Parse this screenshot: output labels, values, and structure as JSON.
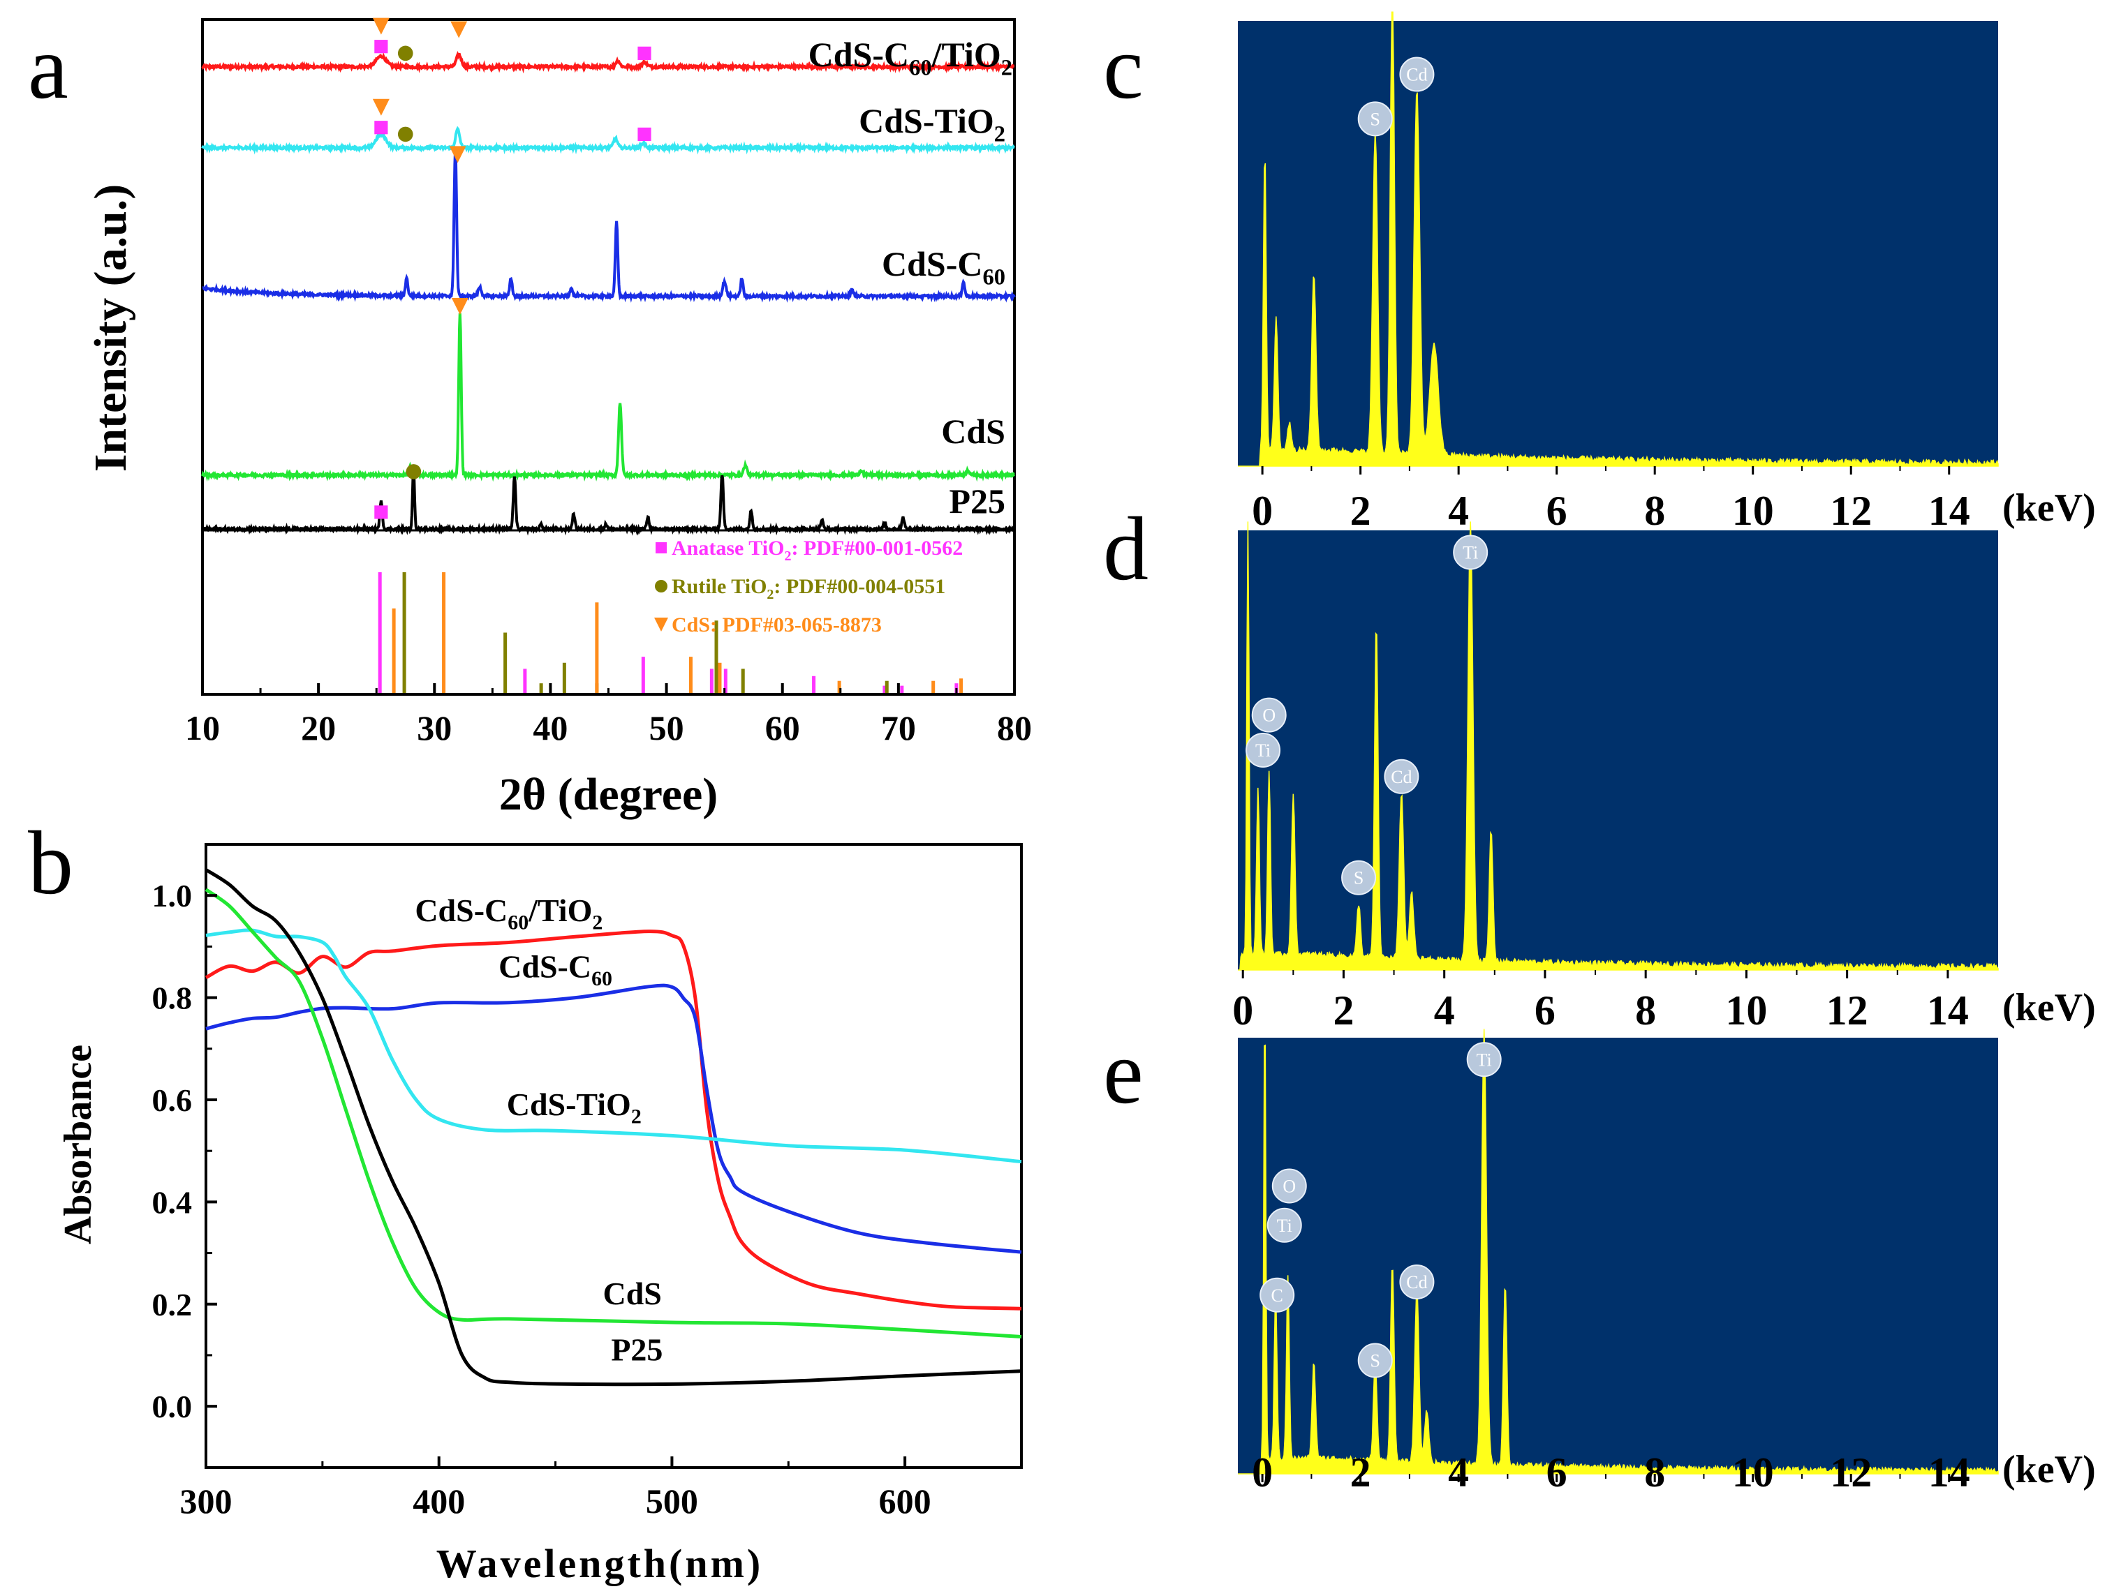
{
  "colors": {
    "red": "#ff1a1a",
    "cyan": "#33e6f0",
    "blue": "#1a2ee6",
    "green": "#22e633",
    "black": "#000000",
    "magenta": "#ff33ff",
    "olive": "#808000",
    "orange": "#ff8c1a",
    "eds_bg": "#00316b",
    "eds_fill": "#ffff1a",
    "bubble": "#b8c8dc"
  },
  "chart_data": [
    {
      "panel": "a",
      "type": "line",
      "title": "",
      "xlabel": "2θ (degree)",
      "ylabel": "Intensity (a.u.)",
      "xlim": [
        10,
        80
      ],
      "xticks": [
        10,
        20,
        30,
        40,
        50,
        60,
        70,
        80
      ],
      "series": [
        {
          "name": "CdS-C60/TiO2",
          "label_main": "CdS-C",
          "label_sub1": "60",
          "label_mid": "/TiO",
          "label_sub2": "2",
          "color": "#ff1a1a",
          "offset": 0.93,
          "scale": 0.045,
          "peaks": [
            [
              25.4,
              0.35,
              0.6
            ],
            [
              32.1,
              0.4,
              0.3
            ],
            [
              45.8,
              0.2,
              0.25
            ],
            [
              48.1,
              0.15,
              0.3
            ]
          ]
        },
        {
          "name": "CdS-TiO2",
          "label_main": "CdS-TiO",
          "label_sub1": "",
          "label_mid": "",
          "label_sub2": "2",
          "color": "#33e6f0",
          "offset": 0.81,
          "scale": 0.045,
          "peaks": [
            [
              25.4,
              0.45,
              0.6
            ],
            [
              32.0,
              0.6,
              0.25
            ],
            [
              45.6,
              0.3,
              0.25
            ],
            [
              48.0,
              0.15,
              0.3
            ]
          ]
        },
        {
          "name": "CdS-C60",
          "label_main": "CdS-C",
          "label_sub1": "60",
          "label_mid": "",
          "label_sub2": "",
          "color": "#1a2ee6",
          "offset": 0.59,
          "scale": 0.22,
          "peaks": [
            [
              27.6,
              0.12,
              0.15
            ],
            [
              31.8,
              1.0,
              0.15
            ],
            [
              33.9,
              0.06,
              0.2
            ],
            [
              36.6,
              0.12,
              0.15
            ],
            [
              41.8,
              0.06,
              0.15
            ],
            [
              45.7,
              0.5,
              0.15
            ],
            [
              55.0,
              0.1,
              0.2
            ],
            [
              56.5,
              0.12,
              0.15
            ],
            [
              66.0,
              0.04,
              0.2
            ],
            [
              75.6,
              0.1,
              0.15
            ]
          ]
        },
        {
          "name": "CdS",
          "label_main": "CdS",
          "label_sub1": "",
          "label_mid": "",
          "label_sub2": "",
          "color": "#22e633",
          "offset": 0.325,
          "scale": 0.24,
          "peaks": [
            [
              27.9,
              0.05,
              0.15
            ],
            [
              32.2,
              1.0,
              0.15
            ],
            [
              46.0,
              0.45,
              0.18
            ],
            [
              56.8,
              0.06,
              0.2
            ],
            [
              66.8,
              0.03,
              0.2
            ],
            [
              76.0,
              0.03,
              0.2
            ]
          ]
        },
        {
          "name": "P25",
          "label_main": "P25",
          "label_sub1": "",
          "label_mid": "",
          "label_sub2": "",
          "color": "#000000",
          "offset": 0.245,
          "scale": 0.09,
          "peaks": [
            [
              25.4,
              0.45,
              0.15
            ],
            [
              28.2,
              1.0,
              0.12
            ],
            [
              36.9,
              0.85,
              0.15
            ],
            [
              39.2,
              0.08,
              0.15
            ],
            [
              42.0,
              0.25,
              0.15
            ],
            [
              44.8,
              0.08,
              0.15
            ],
            [
              48.4,
              0.2,
              0.15
            ],
            [
              54.8,
              0.9,
              0.15
            ],
            [
              57.3,
              0.3,
              0.15
            ],
            [
              63.4,
              0.15,
              0.15
            ],
            [
              68.8,
              0.1,
              0.15
            ],
            [
              70.4,
              0.2,
              0.15
            ]
          ]
        }
      ],
      "markers": [
        {
          "type": "triangle",
          "x": 25.4,
          "y": 0.99
        },
        {
          "type": "square",
          "x": 25.4,
          "y": 0.96
        },
        {
          "type": "hex",
          "x": 27.5,
          "y": 0.95
        },
        {
          "type": "triangle",
          "x": 32.1,
          "y": 0.985
        },
        {
          "type": "square",
          "x": 48.1,
          "y": 0.95
        },
        {
          "type": "triangle",
          "x": 25.4,
          "y": 0.87
        },
        {
          "type": "square",
          "x": 25.4,
          "y": 0.84
        },
        {
          "type": "hex",
          "x": 27.5,
          "y": 0.83
        },
        {
          "type": "square",
          "x": 48.1,
          "y": 0.83
        },
        {
          "type": "triangle",
          "x": 32.0,
          "y": 0.8
        },
        {
          "type": "triangle",
          "x": 32.2,
          "y": 0.575
        },
        {
          "type": "square",
          "x": 25.4,
          "y": 0.27
        },
        {
          "type": "hex",
          "x": 28.2,
          "y": 0.33
        }
      ],
      "reference": {
        "legend": [
          {
            "symbol": "square",
            "text": "Anatase TiO",
            "sub": "2",
            "tail": ": PDF#00-001-0562",
            "color": "#ff33ff"
          },
          {
            "symbol": "hex",
            "text": "Rutile TiO",
            "sub": "2",
            "tail": ": PDF#00-004-0551",
            "color": "#808000"
          },
          {
            "symbol": "triangle",
            "text": "CdS: PDF#03-065-8873",
            "sub": "",
            "tail": "",
            "color": "#ff8c1a"
          }
        ],
        "anatase": [
          [
            25.3,
            1.0
          ],
          [
            37.8,
            0.2
          ],
          [
            48.0,
            0.3
          ],
          [
            53.9,
            0.2
          ],
          [
            55.1,
            0.2
          ],
          [
            62.7,
            0.14
          ],
          [
            68.8,
            0.06
          ],
          [
            70.3,
            0.06
          ],
          [
            75.0,
            0.08
          ]
        ],
        "rutile": [
          [
            27.4,
            1.0
          ],
          [
            36.1,
            0.5
          ],
          [
            39.2,
            0.08
          ],
          [
            41.2,
            0.25
          ],
          [
            44.0,
            0.08
          ],
          [
            54.3,
            0.6
          ],
          [
            56.6,
            0.2
          ],
          [
            69.0,
            0.1
          ]
        ],
        "cds": [
          [
            26.5,
            0.7
          ],
          [
            30.8,
            1.0
          ],
          [
            44.0,
            0.75
          ],
          [
            52.1,
            0.3
          ],
          [
            54.6,
            0.25
          ],
          [
            64.9,
            0.1
          ],
          [
            73.0,
            0.1
          ],
          [
            75.4,
            0.12
          ]
        ]
      }
    },
    {
      "panel": "b",
      "type": "line",
      "title": "",
      "xlabel": "Wavelength(nm)",
      "ylabel": "Absorbance",
      "xlim": [
        300,
        650
      ],
      "ylim": [
        -0.12,
        1.1
      ],
      "xticks": [
        300,
        400,
        500,
        600
      ],
      "yticks": [
        0.0,
        0.2,
        0.4,
        0.6,
        0.8,
        1.0
      ],
      "yticklabels": [
        "0.0",
        "0.2",
        "0.4",
        "0.6",
        "0.8",
        "1.0"
      ],
      "series": [
        {
          "name": "CdS-C60/TiO2",
          "color": "#ff1a1a",
          "x": [
            300,
            310,
            320,
            330,
            340,
            350,
            360,
            370,
            380,
            400,
            430,
            460,
            490,
            500,
            505,
            510,
            515,
            520,
            525,
            530,
            540,
            560,
            580,
            600,
            620,
            650
          ],
          "y": [
            0.84,
            0.86,
            0.85,
            0.87,
            0.85,
            0.88,
            0.86,
            0.89,
            0.89,
            0.9,
            0.91,
            0.92,
            0.93,
            0.92,
            0.9,
            0.8,
            0.58,
            0.44,
            0.37,
            0.32,
            0.28,
            0.24,
            0.22,
            0.205,
            0.195,
            0.19
          ]
        },
        {
          "name": "CdS-C60",
          "color": "#1a2ee6",
          "x": [
            300,
            310,
            320,
            330,
            340,
            350,
            360,
            380,
            400,
            430,
            460,
            490,
            500,
            505,
            510,
            515,
            520,
            525,
            530,
            550,
            580,
            610,
            650
          ],
          "y": [
            0.74,
            0.75,
            0.76,
            0.76,
            0.77,
            0.78,
            0.78,
            0.78,
            0.79,
            0.79,
            0.8,
            0.82,
            0.82,
            0.8,
            0.76,
            0.62,
            0.5,
            0.45,
            0.42,
            0.38,
            0.34,
            0.32,
            0.3
          ]
        },
        {
          "name": "CdS-TiO2",
          "color": "#33e6f0",
          "x": [
            300,
            310,
            320,
            330,
            340,
            350,
            355,
            360,
            370,
            380,
            390,
            400,
            420,
            450,
            500,
            550,
            600,
            650
          ],
          "y": [
            0.92,
            0.93,
            0.93,
            0.92,
            0.92,
            0.91,
            0.88,
            0.84,
            0.78,
            0.68,
            0.6,
            0.56,
            0.54,
            0.54,
            0.53,
            0.51,
            0.5,
            0.48
          ]
        },
        {
          "name": "CdS",
          "color": "#22e633",
          "x": [
            300,
            310,
            320,
            330,
            340,
            350,
            360,
            370,
            380,
            390,
            400,
            410,
            430,
            500,
            550,
            600,
            650
          ],
          "y": [
            1.01,
            0.98,
            0.93,
            0.88,
            0.83,
            0.72,
            0.58,
            0.44,
            0.32,
            0.23,
            0.185,
            0.17,
            0.17,
            0.165,
            0.16,
            0.15,
            0.135
          ]
        },
        {
          "name": "P25",
          "color": "#000000",
          "x": [
            300,
            310,
            320,
            330,
            340,
            350,
            360,
            370,
            380,
            390,
            400,
            410,
            420,
            430,
            450,
            500,
            550,
            600,
            650
          ],
          "y": [
            1.05,
            1.02,
            0.98,
            0.95,
            0.89,
            0.8,
            0.68,
            0.55,
            0.44,
            0.35,
            0.24,
            0.1,
            0.055,
            0.045,
            0.045,
            0.045,
            0.05,
            0.06,
            0.07
          ]
        }
      ],
      "labels": [
        {
          "text": "CdS-C",
          "sub": "60",
          "mid": "/TiO",
          "sub2": "2",
          "x": 430,
          "y": 0.95
        },
        {
          "text": "CdS-C",
          "sub": "60",
          "mid": "",
          "sub2": "",
          "x": 450,
          "y": 0.84
        },
        {
          "text": "CdS-TiO",
          "sub": "",
          "mid": "",
          "sub2": "2",
          "x": 458,
          "y": 0.57
        },
        {
          "text": "CdS",
          "sub": "",
          "mid": "",
          "sub2": "",
          "x": 483,
          "y": 0.2
        },
        {
          "text": "P25",
          "sub": "",
          "mid": "",
          "sub2": "",
          "x": 485,
          "y": 0.09
        }
      ]
    },
    {
      "panel": "c",
      "type": "area",
      "title": "",
      "xlabel": "(keV)",
      "xlim": [
        -0.5,
        15
      ],
      "xticks": [
        0,
        2,
        4,
        6,
        8,
        10,
        12,
        14
      ],
      "peaks": [
        [
          0.05,
          0.68,
          0.04
        ],
        [
          0.28,
          0.3,
          0.05
        ],
        [
          0.55,
          0.06,
          0.06
        ],
        [
          1.05,
          0.4,
          0.06
        ],
        [
          2.3,
          0.72,
          0.07
        ],
        [
          2.65,
          1.06,
          0.06
        ],
        [
          3.15,
          0.82,
          0.08
        ],
        [
          3.5,
          0.25,
          0.12
        ]
      ],
      "background": 0.03,
      "elements": [
        {
          "label": "S",
          "x": 2.3,
          "y": 0.78
        },
        {
          "label": "Cd",
          "x": 3.15,
          "y": 0.88
        }
      ]
    },
    {
      "panel": "d",
      "type": "area",
      "title": "",
      "xlabel": "(keV)",
      "xlim": [
        -0.1,
        15
      ],
      "xticks": [
        0,
        2,
        4,
        6,
        8,
        10,
        12,
        14
      ],
      "peaks": [
        [
          0.1,
          1.06,
          0.03
        ],
        [
          0.3,
          0.38,
          0.04
        ],
        [
          0.52,
          0.42,
          0.04
        ],
        [
          1.0,
          0.36,
          0.05
        ],
        [
          2.3,
          0.12,
          0.05
        ],
        [
          2.65,
          0.76,
          0.05
        ],
        [
          3.15,
          0.38,
          0.06
        ],
        [
          3.35,
          0.15,
          0.06
        ],
        [
          4.52,
          1.0,
          0.07
        ],
        [
          4.93,
          0.3,
          0.05
        ]
      ],
      "background": 0.03,
      "elements": [
        {
          "label": "O",
          "x": 0.52,
          "y": 0.58
        },
        {
          "label": "Ti",
          "x": 0.4,
          "y": 0.5
        },
        {
          "label": "S",
          "x": 2.3,
          "y": 0.21
        },
        {
          "label": "Cd",
          "x": 3.15,
          "y": 0.44
        },
        {
          "label": "Ti",
          "x": 4.52,
          "y": 0.95
        }
      ]
    },
    {
      "panel": "e",
      "type": "area",
      "title": "",
      "xlabel": "(keV)",
      "xlim": [
        -0.5,
        15
      ],
      "xticks": [
        0,
        2,
        4,
        6,
        8,
        10,
        12,
        14
      ],
      "peaks": [
        [
          0.05,
          1.06,
          0.03
        ],
        [
          0.27,
          0.38,
          0.04
        ],
        [
          0.52,
          0.42,
          0.04
        ],
        [
          1.05,
          0.22,
          0.05
        ],
        [
          2.3,
          0.23,
          0.05
        ],
        [
          2.65,
          0.46,
          0.05
        ],
        [
          3.15,
          0.4,
          0.06
        ],
        [
          3.35,
          0.12,
          0.06
        ],
        [
          4.52,
          1.0,
          0.07
        ],
        [
          4.95,
          0.42,
          0.05
        ]
      ],
      "background": 0.03,
      "elements": [
        {
          "label": "O",
          "x": 0.55,
          "y": 0.66
        },
        {
          "label": "Ti",
          "x": 0.45,
          "y": 0.57
        },
        {
          "label": "C",
          "x": 0.3,
          "y": 0.41
        },
        {
          "label": "S",
          "x": 2.3,
          "y": 0.26
        },
        {
          "label": "Cd",
          "x": 3.15,
          "y": 0.44
        },
        {
          "label": "Ti",
          "x": 4.52,
          "y": 0.95
        }
      ]
    }
  ],
  "panel_letters": {
    "a": "a",
    "b": "b",
    "c": "c",
    "d": "d",
    "e": "e"
  }
}
